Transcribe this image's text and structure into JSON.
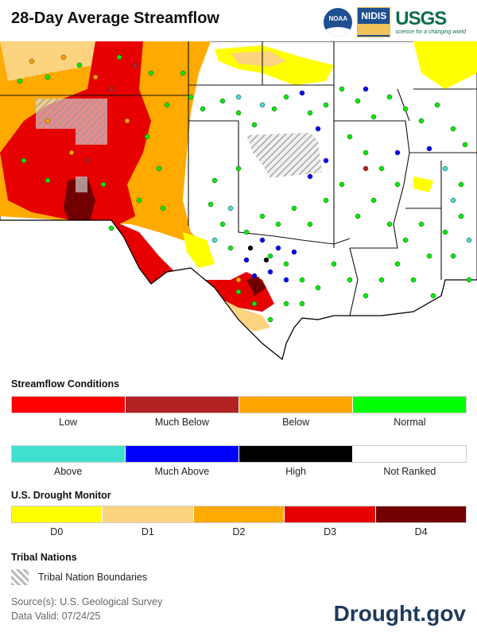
{
  "header": {
    "title": "28-Day Average Streamflow"
  },
  "logos": {
    "noaa": "NOAA",
    "nidis": "NIDIS",
    "usgs": "USGS",
    "usgs_tagline": "science for a changing world"
  },
  "streamflow": {
    "heading": "Streamflow Conditions",
    "row1": [
      {
        "label": "Low",
        "color": "#ff0000"
      },
      {
        "label": "Much Below",
        "color": "#b22222"
      },
      {
        "label": "Below",
        "color": "#ffa500"
      },
      {
        "label": "Normal",
        "color": "#00ff00"
      }
    ],
    "row2": [
      {
        "label": "Above",
        "color": "#40e0d0"
      },
      {
        "label": "Much Above",
        "color": "#0000ff"
      },
      {
        "label": "High",
        "color": "#000000"
      },
      {
        "label": "Not Ranked",
        "color": "#ffffff"
      }
    ]
  },
  "drought": {
    "heading": "U.S. Drought Monitor",
    "levels": [
      {
        "label": "D0",
        "color": "#ffff00"
      },
      {
        "label": "D1",
        "color": "#fcd37f"
      },
      {
        "label": "D2",
        "color": "#ffaa00"
      },
      {
        "label": "D3",
        "color": "#e60000"
      },
      {
        "label": "D4",
        "color": "#730000"
      }
    ]
  },
  "tribal": {
    "heading": "Tribal Nations",
    "label": "Tribal Nation Boundaries"
  },
  "footer": {
    "source": "Source(s): U.S. Geological Survey",
    "valid": "Data Valid: 07/24/25",
    "brand": "Drought.gov"
  }
}
